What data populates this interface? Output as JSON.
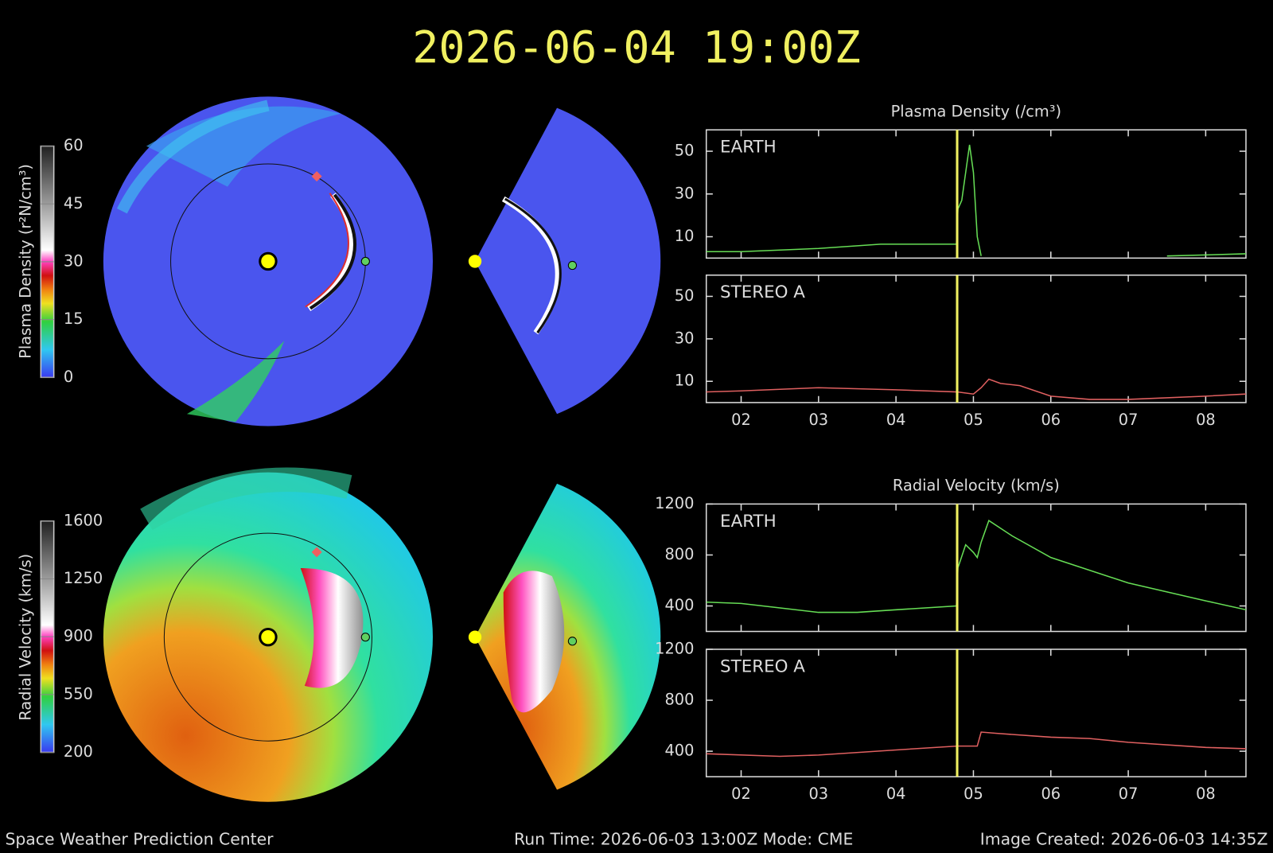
{
  "title": "2026-06-04 19:00Z",
  "colorbars": [
    {
      "label": "Plasma Density (r²N/cm³)",
      "lim": [
        0,
        60
      ],
      "ticks": [
        0,
        15,
        30,
        45,
        60
      ]
    },
    {
      "label": "Radial Velocity (km/s)",
      "lim": [
        200,
        1600
      ],
      "ticks": [
        200,
        550,
        900,
        1250,
        1600
      ]
    }
  ],
  "chart_data": [
    {
      "type": "line",
      "title": "Plasma Density (/cm³)",
      "xlim": [
        1.55,
        8.52
      ],
      "ylim": [
        0,
        60
      ],
      "yticks": [
        10,
        30,
        50
      ],
      "xticks": [
        2,
        3,
        4,
        5,
        6,
        7,
        8
      ],
      "marker_x": 4.79,
      "marker_color": "#f0f060",
      "x": [
        1.55,
        2,
        3,
        3.8,
        4.78,
        4.8,
        4.85,
        4.9,
        4.95,
        5.0,
        5.05,
        5.1,
        6.9,
        7.5,
        8.52
      ],
      "series": [
        {
          "name": "EARTH",
          "color": "#66dd55",
          "values": [
            3,
            3,
            4.5,
            6.5,
            6.5,
            23,
            27,
            40,
            53,
            40,
            10,
            1,
            null,
            1,
            2
          ]
        }
      ]
    },
    {
      "type": "line",
      "xlim": [
        1.55,
        8.52
      ],
      "ylim": [
        0,
        60
      ],
      "yticks": [
        10,
        30,
        50
      ],
      "xticks": [
        {
          "value": 2,
          "label": "02"
        },
        {
          "value": 3,
          "label": "03"
        },
        {
          "value": 4,
          "label": "04"
        },
        {
          "value": 5,
          "label": "05"
        },
        {
          "value": 6,
          "label": "06"
        },
        {
          "value": 7,
          "label": "07"
        },
        {
          "value": 8,
          "label": "08"
        }
      ],
      "marker_x": 4.79,
      "marker_color": "#f0f060",
      "x": [
        1.55,
        2,
        3,
        4,
        4.79,
        5.0,
        5.1,
        5.2,
        5.35,
        5.6,
        6,
        6.5,
        7,
        8,
        8.52
      ],
      "series": [
        {
          "name": "STEREO A",
          "color": "#e06060",
          "values": [
            5,
            5.5,
            7,
            6,
            5,
            4,
            7,
            11,
            9,
            8,
            3,
            1.5,
            1.5,
            3,
            4
          ]
        }
      ]
    },
    {
      "type": "line",
      "title": "Radial Velocity (km/s)",
      "xlim": [
        1.55,
        8.52
      ],
      "ylim": [
        200,
        1200
      ],
      "yticks": [
        400,
        800,
        1200
      ],
      "xticks": [
        2,
        3,
        4,
        5,
        6,
        7,
        8
      ],
      "marker_x": 4.79,
      "marker_color": "#f0f060",
      "x": [
        1.55,
        2,
        3,
        3.5,
        4,
        4.78,
        4.8,
        4.9,
        5.0,
        5.05,
        5.1,
        5.2,
        5.5,
        6,
        7,
        8,
        8.52
      ],
      "series": [
        {
          "name": "EARTH",
          "color": "#66dd55",
          "values": [
            430,
            420,
            350,
            350,
            370,
            400,
            700,
            880,
            820,
            780,
            900,
            1070,
            950,
            780,
            580,
            440,
            370
          ]
        }
      ]
    },
    {
      "type": "line",
      "xlim": [
        1.55,
        8.52
      ],
      "ylim": [
        200,
        1200
      ],
      "yticks": [
        400,
        800,
        1200
      ],
      "xticks": [
        {
          "value": 2,
          "label": "02"
        },
        {
          "value": 3,
          "label": "03"
        },
        {
          "value": 4,
          "label": "04"
        },
        {
          "value": 5,
          "label": "05"
        },
        {
          "value": 6,
          "label": "06"
        },
        {
          "value": 7,
          "label": "07"
        },
        {
          "value": 8,
          "label": "08"
        }
      ],
      "marker_x": 4.79,
      "marker_color": "#f0f060",
      "x": [
        1.55,
        2.5,
        3,
        4,
        4.79,
        5.05,
        5.1,
        5.3,
        6,
        6.5,
        7,
        8,
        8.52
      ],
      "series": [
        {
          "name": "STEREO A",
          "color": "#e06060",
          "values": [
            380,
            360,
            370,
            410,
            440,
            440,
            550,
            540,
            510,
            500,
            470,
            430,
            420
          ]
        }
      ]
    }
  ],
  "footer": {
    "left": "Space Weather Prediction Center",
    "center": "Run Time: 2026-06-03 13:00Z  Mode: CME",
    "right": "Image Created: 2026-06-03 14:35Z"
  }
}
